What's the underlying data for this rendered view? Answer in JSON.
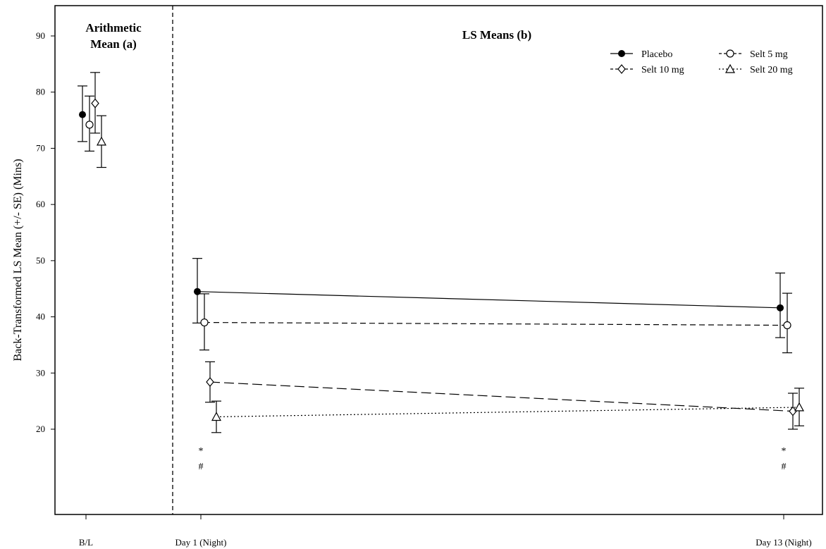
{
  "chart_data": {
    "type": "line",
    "ylabel": "Back-Transformed LS Mean (+/- SE) (Mins)",
    "ylim": [
      5,
      95
    ],
    "yticks": [
      20,
      30,
      40,
      50,
      60,
      70,
      80,
      90
    ],
    "categories": [
      "B/L",
      "Day 1 (Night)",
      "Day 13 (Night)"
    ],
    "panels": [
      {
        "title_line1": "Arithmetic",
        "title_line2": "Mean (a)"
      },
      {
        "title_line1": "LS Means (b)",
        "title_line2": ""
      }
    ],
    "series": [
      {
        "name": "Placebo",
        "marker": "filled-circle",
        "line_style": "solid",
        "values": [
          76.0,
          44.5,
          41.6
        ],
        "se_low": [
          71.2,
          38.9,
          36.3
        ],
        "se_high": [
          81.1,
          50.4,
          47.8
        ]
      },
      {
        "name": "Selt 5 mg",
        "marker": "open-circle",
        "line_style": "dashed",
        "values": [
          74.2,
          39.0,
          38.5
        ],
        "se_low": [
          69.5,
          34.1,
          33.6
        ],
        "se_high": [
          79.3,
          44.1,
          44.2
        ]
      },
      {
        "name": "Selt 10 mg",
        "marker": "open-diamond",
        "line_style": "longdash",
        "values": [
          78.0,
          28.4,
          23.2
        ],
        "se_low": [
          72.7,
          24.8,
          20.0
        ],
        "se_high": [
          83.5,
          32.0,
          26.4
        ]
      },
      {
        "name": "Selt 20 mg",
        "marker": "open-triangle",
        "line_style": "dotted",
        "values": [
          71.2,
          22.2,
          23.9
        ],
        "se_low": [
          66.6,
          19.4,
          20.6
        ],
        "se_high": [
          75.8,
          25.0,
          27.3
        ]
      }
    ],
    "annotations": [
      {
        "text": "*",
        "category": "Day 1 (Night)"
      },
      {
        "text": "#",
        "category": "Day 1 (Night)"
      },
      {
        "text": "*",
        "category": "Day 13 (Night)"
      },
      {
        "text": "#",
        "category": "Day 13 (Night)"
      }
    ],
    "legend_position": "top-right",
    "grid": false
  }
}
